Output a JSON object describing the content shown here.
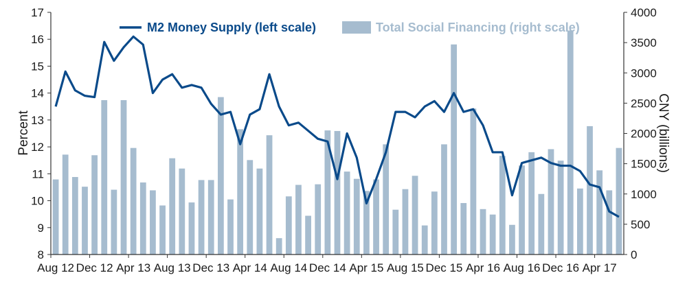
{
  "chart_data": {
    "type": "bar+line",
    "title": "",
    "x_tick_labels": [
      "Aug 12",
      "Dec 12",
      "Apr 13",
      "Aug 13",
      "Dec 13",
      "Apr 14",
      "Aug 14",
      "Dec 14",
      "Apr 15",
      "Aug 15",
      "Dec 15",
      "Apr 16",
      "Aug 16",
      "Dec 16",
      "Apr 17"
    ],
    "ylabel_left": "Percent",
    "ylabel_right": "CNY (billions)",
    "ylim_left": [
      8,
      17
    ],
    "ylim_right": [
      0,
      4000
    ],
    "y_ticks_left": [
      "8",
      "9",
      "10",
      "11",
      "12",
      "13",
      "14",
      "15",
      "16",
      "17"
    ],
    "y_ticks_right": [
      "0",
      "500",
      "1000",
      "1500",
      "2000",
      "2500",
      "3000",
      "3500",
      "4000"
    ],
    "legend": {
      "line_label": "M2 Money Supply (left scale)",
      "bar_label": "Total Social Financing (right scale)"
    },
    "colors": {
      "line": "#0a4a8a",
      "bar": "#a6bccf",
      "axis": "#333333",
      "tick_text": "#1a1a1a"
    },
    "months": [
      "2012-08",
      "2012-09",
      "2012-10",
      "2012-11",
      "2012-12",
      "2013-01",
      "2013-02",
      "2013-03",
      "2013-04",
      "2013-05",
      "2013-06",
      "2013-07",
      "2013-08",
      "2013-09",
      "2013-10",
      "2013-11",
      "2013-12",
      "2014-01",
      "2014-02",
      "2014-03",
      "2014-04",
      "2014-05",
      "2014-06",
      "2014-07",
      "2014-08",
      "2014-09",
      "2014-10",
      "2014-11",
      "2014-12",
      "2015-01",
      "2015-02",
      "2015-03",
      "2015-04",
      "2015-05",
      "2015-06",
      "2015-07",
      "2015-08",
      "2015-09",
      "2015-10",
      "2015-11",
      "2015-12",
      "2016-01",
      "2016-02",
      "2016-03",
      "2016-04",
      "2016-05",
      "2016-06",
      "2016-07",
      "2016-08",
      "2016-09",
      "2016-10",
      "2016-11",
      "2016-12",
      "2017-01",
      "2017-02",
      "2017-03",
      "2017-04",
      "2017-05",
      "2017-06"
    ],
    "series": [
      {
        "name": "M2 Money Supply (left scale)",
        "type": "line",
        "axis": "left",
        "values": [
          13.5,
          14.8,
          14.1,
          13.9,
          13.85,
          15.9,
          15.2,
          15.7,
          16.1,
          15.8,
          14.0,
          14.5,
          14.7,
          14.2,
          14.3,
          14.2,
          13.6,
          13.2,
          13.3,
          12.1,
          13.2,
          13.4,
          14.7,
          13.5,
          12.8,
          12.9,
          12.6,
          12.3,
          12.2,
          10.8,
          12.5,
          11.6,
          9.9,
          10.8,
          11.8,
          13.3,
          13.3,
          13.1,
          13.5,
          13.7,
          13.3,
          14.0,
          13.3,
          13.4,
          12.8,
          11.8,
          11.8,
          10.2,
          11.4,
          11.5,
          11.6,
          11.4,
          11.3,
          11.3,
          11.1,
          10.6,
          10.5,
          9.6,
          9.4
        ]
      },
      {
        "name": "Total Social Financing (right scale)",
        "type": "bar",
        "axis": "right",
        "values": [
          1240,
          1650,
          1280,
          1120,
          1640,
          2550,
          1070,
          2550,
          1760,
          1190,
          1060,
          810,
          1590,
          1420,
          860,
          1230,
          1230,
          2600,
          910,
          2070,
          1560,
          1420,
          1970,
          270,
          960,
          1150,
          640,
          1160,
          2050,
          2040,
          1370,
          1250,
          1050,
          1240,
          1820,
          740,
          1080,
          1300,
          480,
          1040,
          1820,
          3470,
          850,
          2410,
          750,
          660,
          1630,
          490,
          1470,
          1690,
          1000,
          1740,
          1550,
          3700,
          1090,
          2120,
          1390,
          1060,
          1760
        ]
      }
    ]
  }
}
